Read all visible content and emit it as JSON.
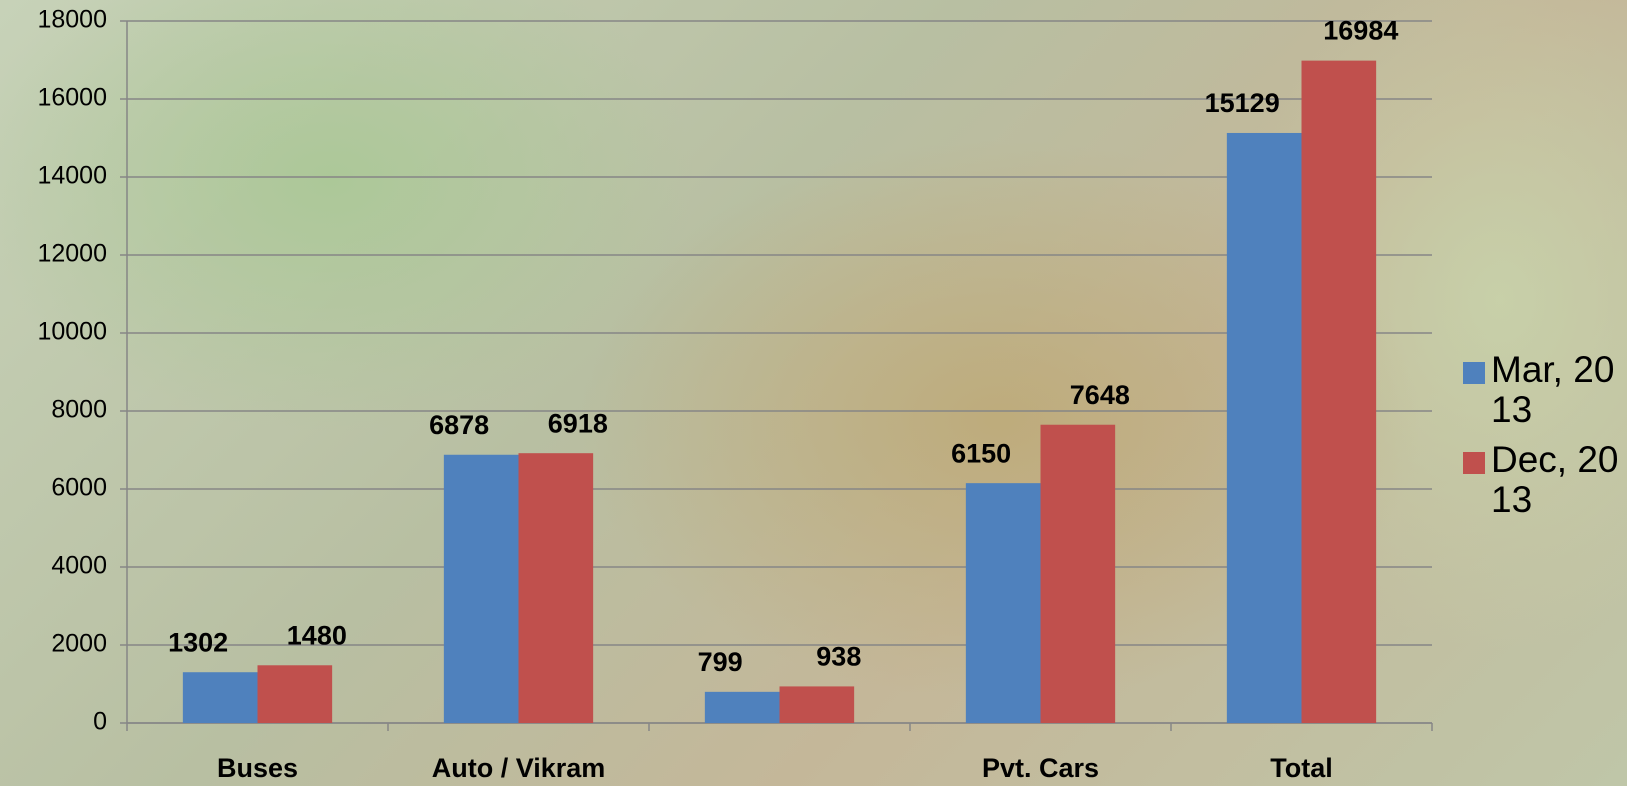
{
  "chart_data": {
    "type": "bar",
    "categories": [
      "Buses",
      "Auto / Vikram",
      null,
      "Pvt. Cars",
      "Total"
    ],
    "series": [
      {
        "name": "Mar, 2013",
        "color": "#4f81bd",
        "values": [
          1302,
          6878,
          799,
          6150,
          15129
        ]
      },
      {
        "name": "Dec, 2013",
        "color": "#c0504d",
        "values": [
          1480,
          6918,
          938,
          7648,
          16984
        ]
      }
    ],
    "ylim": [
      0,
      18000
    ],
    "yticks": [
      0,
      2000,
      4000,
      6000,
      8000,
      10000,
      12000,
      14000,
      16000,
      18000
    ],
    "grid": true,
    "legend": "right"
  }
}
